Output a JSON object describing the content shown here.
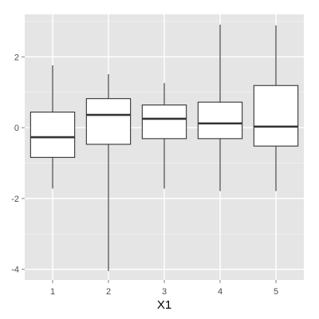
{
  "chart_data": {
    "type": "boxplot",
    "title": "",
    "xlabel": "X1",
    "ylabel": "",
    "categories": [
      "1",
      "2",
      "3",
      "4",
      "5"
    ],
    "boxes": [
      {
        "category": "1",
        "whisker_low": -1.72,
        "q1": -0.84,
        "median": -0.27,
        "q3": 0.44,
        "whisker_high": 1.76
      },
      {
        "category": "2",
        "whisker_low": -4.05,
        "q1": -0.47,
        "median": 0.36,
        "q3": 0.82,
        "whisker_high": 1.51
      },
      {
        "category": "3",
        "whisker_low": -1.72,
        "q1": -0.31,
        "median": 0.25,
        "q3": 0.64,
        "whisker_high": 1.26
      },
      {
        "category": "4",
        "whisker_low": -1.79,
        "q1": -0.31,
        "median": 0.12,
        "q3": 0.72,
        "whisker_high": 2.91
      },
      {
        "category": "5",
        "whisker_low": -1.79,
        "q1": -0.52,
        "median": 0.03,
        "q3": 1.19,
        "whisker_high": 2.89
      }
    ],
    "yticks": [
      -4,
      -2,
      0,
      2
    ],
    "ylim": [
      -4.3,
      3.2
    ],
    "grid": true,
    "colors": {
      "panel_background": "#E5E5E5",
      "grid_major": "#FFFFFF",
      "grid_minor": "#F2F2F2",
      "box_fill": "#FFFFFF",
      "box_stroke": "#333333",
      "median_line": "#333333",
      "tick_text": "#4D4D4D",
      "axis_title": "#000000"
    }
  }
}
